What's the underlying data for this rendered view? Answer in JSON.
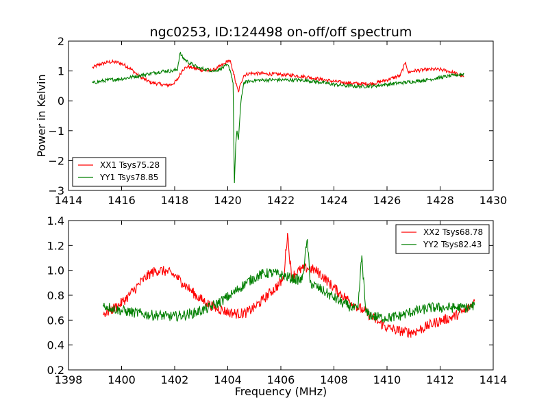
{
  "title": "ngc0253, ID:124498 on-off/off spectrum",
  "colors": {
    "red": "#ff0000",
    "green": "#007f00",
    "frame": "#000000"
  },
  "chart_data": [
    {
      "type": "line",
      "name": "top",
      "title": "ngc0253, ID:124498 on-off/off spectrum",
      "xlabel": "",
      "ylabel": "Power in Kelvin",
      "xlim": [
        1414,
        1430
      ],
      "ylim": [
        -3,
        2
      ],
      "xticks": [
        1414,
        1416,
        1418,
        1420,
        1422,
        1424,
        1426,
        1428,
        1430
      ],
      "yticks": [
        -3,
        -2,
        -1,
        0,
        1,
        2
      ],
      "xtick_labels": [
        "1414",
        "1416",
        "1418",
        "1420",
        "1422",
        "1424",
        "1426",
        "1428",
        "1430"
      ],
      "ytick_labels": [
        "−3",
        "−2",
        "−1",
        "0",
        "1",
        "2"
      ],
      "legend_position": "lower-left",
      "grid": false,
      "series": [
        {
          "name": "XX1 Tsys75.28",
          "color": "#ff0000",
          "x": [
            1414.9,
            1415.1,
            1415.3,
            1415.5,
            1415.7,
            1415.9,
            1416.1,
            1416.3,
            1416.5,
            1416.7,
            1416.9,
            1417.1,
            1417.3,
            1417.5,
            1417.7,
            1417.9,
            1418.1,
            1418.3,
            1418.5,
            1418.7,
            1418.9,
            1419.1,
            1419.3,
            1419.5,
            1419.7,
            1419.9,
            1420.0,
            1420.1,
            1420.2,
            1420.3,
            1420.4,
            1420.5,
            1420.6,
            1420.8,
            1421.0,
            1421.5,
            1422.0,
            1422.5,
            1423.0,
            1423.5,
            1424.0,
            1424.5,
            1425.0,
            1425.5,
            1426.0,
            1426.5,
            1426.7,
            1426.8,
            1427.0,
            1427.5,
            1428.0,
            1428.5,
            1428.9
          ],
          "y": [
            1.1,
            1.2,
            1.25,
            1.3,
            1.3,
            1.28,
            1.2,
            1.1,
            0.95,
            0.8,
            0.7,
            0.62,
            0.58,
            0.55,
            0.52,
            0.55,
            0.7,
            1.05,
            1.15,
            1.1,
            1.05,
            1.02,
            1.0,
            1.05,
            1.15,
            1.25,
            1.35,
            1.3,
            1.0,
            0.6,
            0.3,
            0.6,
            0.85,
            0.92,
            0.92,
            0.9,
            0.88,
            0.85,
            0.8,
            0.72,
            0.65,
            0.6,
            0.57,
            0.58,
            0.7,
            0.85,
            1.3,
            0.95,
            1.0,
            1.05,
            1.05,
            0.95,
            0.8
          ]
        },
        {
          "name": "YY1 Tsys78.85",
          "color": "#007f00",
          "x": [
            1414.9,
            1415.2,
            1415.5,
            1415.8,
            1416.1,
            1416.4,
            1416.7,
            1417.0,
            1417.3,
            1417.6,
            1417.9,
            1418.1,
            1418.2,
            1418.3,
            1418.5,
            1418.7,
            1418.9,
            1419.2,
            1419.5,
            1419.8,
            1420.0,
            1420.1,
            1420.2,
            1420.25,
            1420.3,
            1420.35,
            1420.4,
            1420.5,
            1420.6,
            1420.8,
            1421.0,
            1421.5,
            1422.0,
            1422.5,
            1423.0,
            1423.5,
            1424.0,
            1424.5,
            1425.0,
            1425.5,
            1426.0,
            1426.5,
            1427.0,
            1427.5,
            1428.0,
            1428.5,
            1428.9
          ],
          "y": [
            0.6,
            0.65,
            0.7,
            0.72,
            0.75,
            0.8,
            0.85,
            0.9,
            0.95,
            1.0,
            1.0,
            1.05,
            1.6,
            1.45,
            1.3,
            1.2,
            1.1,
            1.05,
            1.0,
            1.1,
            1.2,
            1.0,
            0.6,
            -2.75,
            -1.5,
            -1.0,
            -1.3,
            0.0,
            0.6,
            0.65,
            0.68,
            0.7,
            0.7,
            0.7,
            0.68,
            0.62,
            0.55,
            0.5,
            0.48,
            0.5,
            0.55,
            0.6,
            0.65,
            0.7,
            0.78,
            0.85,
            0.9
          ]
        }
      ]
    },
    {
      "type": "line",
      "name": "bottom",
      "title": "",
      "xlabel": "Frequency (MHz)",
      "ylabel": "",
      "xlim": [
        1398,
        1414
      ],
      "ylim": [
        0.2,
        1.4
      ],
      "xticks": [
        1398,
        1400,
        1402,
        1404,
        1406,
        1408,
        1410,
        1412,
        1414
      ],
      "yticks": [
        0.2,
        0.4,
        0.6,
        0.8,
        1.0,
        1.2,
        1.4
      ],
      "xtick_labels": [
        "1398",
        "1400",
        "1402",
        "1404",
        "1406",
        "1408",
        "1410",
        "1412",
        "1414"
      ],
      "ytick_labels": [
        "0.2",
        "0.4",
        "0.6",
        "0.8",
        "1.0",
        "1.2",
        "1.4"
      ],
      "legend_position": "upper-right",
      "grid": false,
      "series": [
        {
          "name": "XX2 Tsys68.78",
          "color": "#ff0000",
          "x": [
            1399.3,
            1399.6,
            1399.9,
            1400.2,
            1400.5,
            1400.8,
            1401.1,
            1401.4,
            1401.7,
            1402.0,
            1402.3,
            1402.6,
            1402.9,
            1403.2,
            1403.5,
            1403.8,
            1404.1,
            1404.4,
            1404.7,
            1405.0,
            1405.3,
            1405.6,
            1405.9,
            1406.1,
            1406.25,
            1406.4,
            1406.7,
            1407.0,
            1407.3,
            1407.6,
            1407.9,
            1408.2,
            1408.5,
            1408.8,
            1409.1,
            1409.4,
            1409.7,
            1410.0,
            1410.3,
            1410.6,
            1410.9,
            1411.2,
            1411.5,
            1411.8,
            1412.1,
            1412.4,
            1412.7,
            1413.0,
            1413.3
          ],
          "y": [
            0.65,
            0.68,
            0.72,
            0.78,
            0.85,
            0.92,
            0.98,
            1.0,
            0.99,
            0.96,
            0.9,
            0.84,
            0.78,
            0.74,
            0.7,
            0.68,
            0.66,
            0.65,
            0.66,
            0.7,
            0.76,
            0.82,
            0.88,
            0.93,
            1.3,
            0.95,
            1.0,
            1.02,
            1.0,
            0.95,
            0.88,
            0.82,
            0.77,
            0.72,
            0.68,
            0.63,
            0.58,
            0.54,
            0.52,
            0.51,
            0.5,
            0.52,
            0.55,
            0.58,
            0.6,
            0.62,
            0.65,
            0.68,
            0.75
          ]
        },
        {
          "name": "YY2 Tsys82.43",
          "color": "#007f00",
          "x": [
            1399.3,
            1399.6,
            1399.9,
            1400.2,
            1400.5,
            1400.8,
            1401.1,
            1401.4,
            1401.7,
            1402.0,
            1402.3,
            1402.6,
            1402.9,
            1403.2,
            1403.5,
            1403.8,
            1404.1,
            1404.4,
            1404.7,
            1405.0,
            1405.3,
            1405.6,
            1405.9,
            1406.2,
            1406.5,
            1406.8,
            1407.0,
            1407.1,
            1407.4,
            1407.7,
            1408.0,
            1408.3,
            1408.6,
            1408.9,
            1409.05,
            1409.2,
            1409.5,
            1409.8,
            1410.1,
            1410.4,
            1410.7,
            1411.0,
            1411.3,
            1411.6,
            1411.9,
            1412.2,
            1412.5,
            1412.8,
            1413.1,
            1413.3
          ],
          "y": [
            0.72,
            0.7,
            0.68,
            0.67,
            0.66,
            0.65,
            0.64,
            0.64,
            0.63,
            0.63,
            0.64,
            0.65,
            0.67,
            0.69,
            0.72,
            0.76,
            0.8,
            0.85,
            0.9,
            0.94,
            0.97,
            0.98,
            0.97,
            0.95,
            0.93,
            0.92,
            1.25,
            0.9,
            0.86,
            0.82,
            0.78,
            0.74,
            0.71,
            0.68,
            1.12,
            0.66,
            0.63,
            0.62,
            0.62,
            0.63,
            0.65,
            0.67,
            0.68,
            0.7,
            0.7,
            0.7,
            0.7,
            0.7,
            0.7,
            0.72
          ]
        }
      ]
    }
  ]
}
